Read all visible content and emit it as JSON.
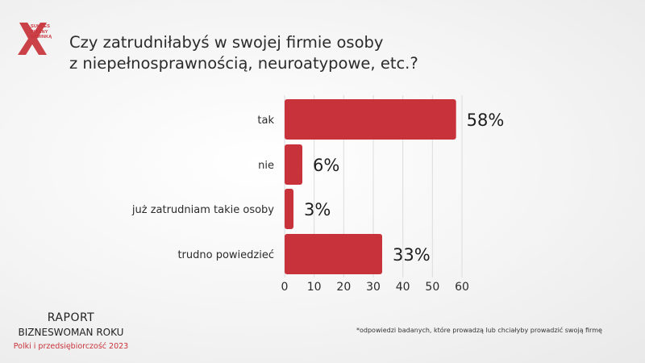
{
  "brand": {
    "logo_text": [
      "SUKCES",
      "PISANY",
      "SZMINKĄ"
    ],
    "accent_color": "#c8323a"
  },
  "title_lines": [
    "Czy zatrudniłabyś w swojej firmie osoby",
    "z niepełnosprawnością, neuroatypowe, etc.?"
  ],
  "chart_data": {
    "type": "bar",
    "orientation": "horizontal",
    "categories": [
      "tak",
      "nie",
      "już zatrudniam takie osoby",
      "trudno powiedzieć"
    ],
    "values": [
      58,
      6,
      3,
      33
    ],
    "value_labels": [
      "58%",
      "6%",
      "3%",
      "33%"
    ],
    "xlim": [
      0,
      60
    ],
    "xticks": [
      0,
      10,
      20,
      30,
      40,
      50,
      60
    ],
    "grid": true,
    "bar_color": "#c8323a"
  },
  "report": {
    "title": "RAPORT",
    "subtitle": "BIZNESWOMAN ROKU",
    "tagline": "Polki i przedsiębiorczość 2023"
  },
  "footnote": "*odpowiedzi badanych, które prowadzą lub chciałyby prowadzić swoją firmę"
}
